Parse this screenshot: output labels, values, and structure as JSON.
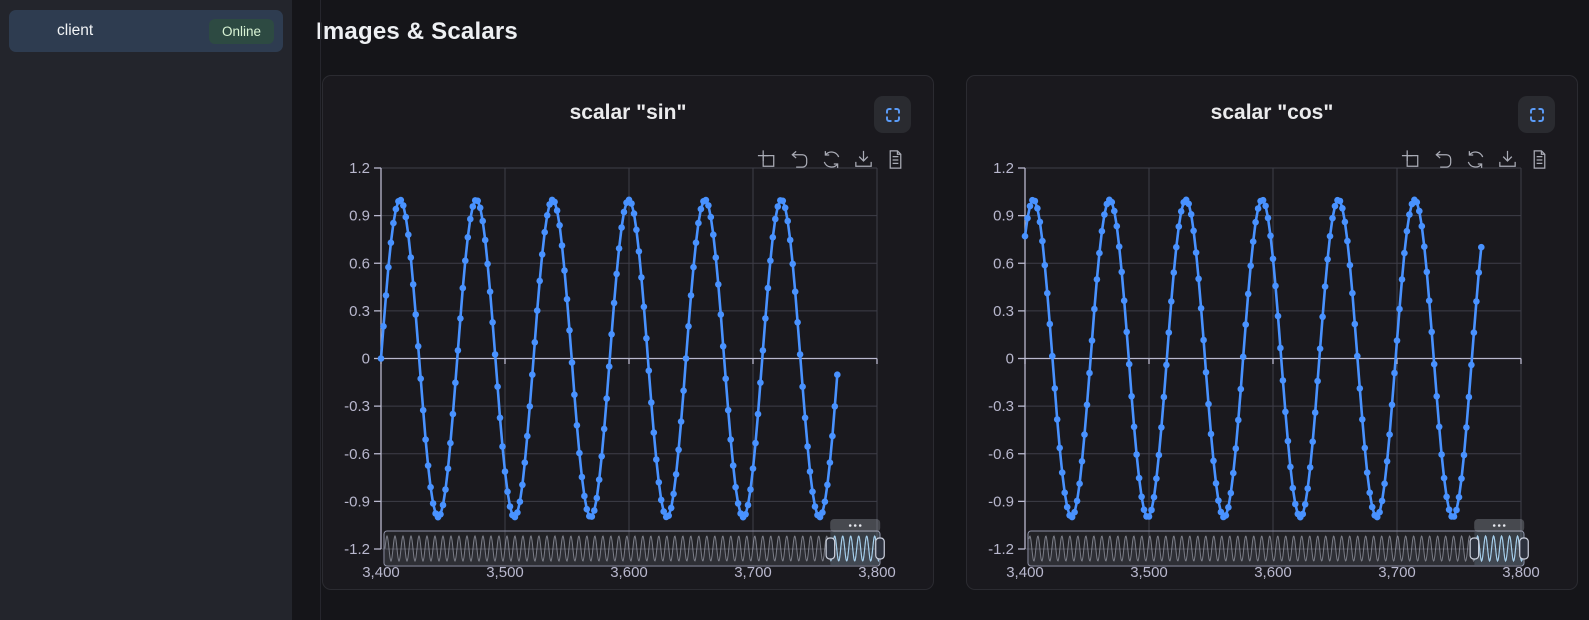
{
  "sidebar": {
    "client_label": "client",
    "status_badge": "Online",
    "status_color": "#2d4a42",
    "status_text_color": "#d8f3d4"
  },
  "header": {
    "title": "Images & Scalars"
  },
  "panel": {
    "fullscreen_icon": "fullscreen-expand",
    "toolbar_icons": [
      "zoom-select",
      "zoom-back",
      "restore",
      "save-as-image",
      "data-view"
    ]
  },
  "colors": {
    "accent_line": "#4992ff",
    "axis": "#b9b8ce",
    "grid": "#3e3e48",
    "icon": "#a9abb5",
    "fullscreen_icon": "#5b9cf8",
    "minimap_border": "#9093a8",
    "minimap_wave": "rgba(205,210,226,0.5)",
    "minimap_fill": "rgba(160,168,190,0.1)",
    "selection_fill": "rgba(135,163,185,0.22)",
    "selection_wave": "#a6d0ee",
    "handle_fill": "#2c313d",
    "handle_border": "#ccd1de",
    "grip_fill": "rgba(190,196,210,0.28)",
    "grip_dots": "#e6e8ee"
  },
  "chart_data": [
    {
      "type": "line",
      "title": "scalar \"sin\"",
      "series": [
        {
          "name": "sin",
          "generator": {
            "func": "sine",
            "amplitude": 1,
            "period_steps": 61.5,
            "phase_rad": 0,
            "x_start": 3400,
            "x_end": 3768,
            "step": 2,
            "start_value": 0,
            "end_value": -0.1
          }
        }
      ],
      "x_axis": {
        "min": 3400,
        "max": 3800,
        "tick_values": [
          3400,
          3500,
          3600,
          3700,
          3800
        ],
        "tick_labels": [
          "3,400",
          "3,500",
          "3,600",
          "3,700",
          "3,800"
        ]
      },
      "y_axis": {
        "min": -1.2,
        "max": 1.2,
        "tick_values": [
          1.2,
          0.9,
          0.6,
          0.3,
          0,
          -0.3,
          -0.6,
          -0.9,
          -1.2
        ],
        "tick_labels": [
          "1.2",
          "0.9",
          "0.6",
          "0.3",
          "0",
          "-0.3",
          "-0.6",
          "-0.9",
          "-1.2"
        ]
      },
      "grid": true,
      "legend_position": "none",
      "datazoom": {
        "full_range": [
          0,
          3800
        ],
        "window_fraction": [
          0.9,
          1.0
        ]
      }
    },
    {
      "type": "line",
      "title": "scalar \"cos\"",
      "series": [
        {
          "name": "cos",
          "generator": {
            "func": "sine",
            "amplitude": 1,
            "period_steps": 61.5,
            "phase_rad": 0.879,
            "x_start": 3400,
            "x_end": 3768,
            "step": 2,
            "start_value": 0.77,
            "end_value": 0.7
          }
        }
      ],
      "x_axis": {
        "min": 3400,
        "max": 3800,
        "tick_values": [
          3400,
          3500,
          3600,
          3700,
          3800
        ],
        "tick_labels": [
          "3,400",
          "3,500",
          "3,600",
          "3,700",
          "3,800"
        ]
      },
      "y_axis": {
        "min": -1.2,
        "max": 1.2,
        "tick_values": [
          1.2,
          0.9,
          0.6,
          0.3,
          0,
          -0.3,
          -0.6,
          -0.9,
          -1.2
        ],
        "tick_labels": [
          "1.2",
          "0.9",
          "0.6",
          "0.3",
          "0",
          "-0.3",
          "-0.6",
          "-0.9",
          "-1.2"
        ]
      },
      "grid": true,
      "legend_position": "none",
      "datazoom": {
        "full_range": [
          0,
          3800
        ],
        "window_fraction": [
          0.9,
          1.0
        ]
      }
    }
  ]
}
